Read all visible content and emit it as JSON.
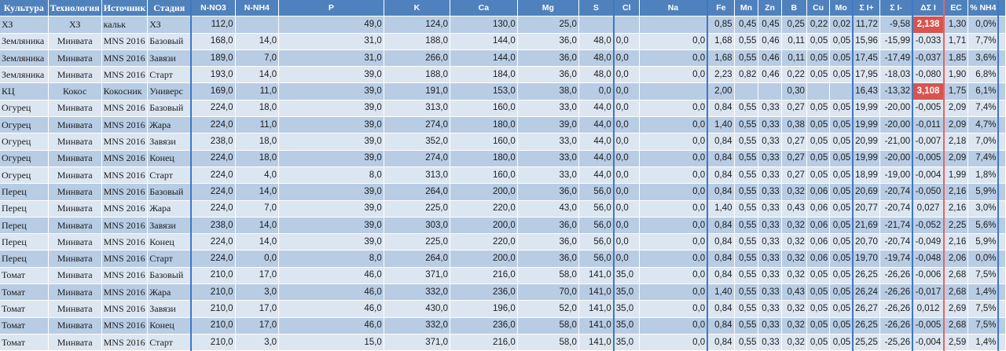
{
  "columns": [
    "Культура",
    "Технология",
    "Источник",
    "Стадия",
    "N-NO3",
    "N-NH4",
    "P",
    "K",
    "Ca",
    "Mg",
    "S",
    "Cl",
    "Na",
    "Fe",
    "Mn",
    "Zn",
    "B",
    "Cu",
    "Mo",
    "Σ I+",
    "Σ I-",
    "ΔΣ I",
    "EC",
    "% NH4",
    ""
  ],
  "rows": [
    [
      "ХЗ",
      "ХЗ",
      "кальк",
      "ХЗ",
      "112,0",
      "",
      "49,0",
      "124,0",
      "130,0",
      "25,0",
      "",
      "",
      "",
      "0,85",
      "0,45",
      "0,45",
      "0,25",
      "0,22",
      "0,02",
      "11,72",
      "-9,58",
      "2,138",
      "1,30",
      "0,0%",
      ""
    ],
    [
      "Земляника",
      "Минвата",
      "MNS 2016",
      "Базовый",
      "168,0",
      "14,0",
      "31,0",
      "188,0",
      "144,0",
      "36,0",
      "48,0",
      "0,0",
      "0,0",
      "1,68",
      "0,55",
      "0,46",
      "0,11",
      "0,05",
      "0,05",
      "15,96",
      "-15,99",
      "-0,033",
      "1,71",
      "7,7%",
      ""
    ],
    [
      "Земляника",
      "Минвата",
      "MNS 2016",
      "Завязи",
      "189,0",
      "7,0",
      "31,0",
      "266,0",
      "144,0",
      "36,0",
      "48,0",
      "0,0",
      "0,0",
      "1,68",
      "0,55",
      "0,46",
      "0,11",
      "0,05",
      "0,05",
      "17,45",
      "-17,49",
      "-0,037",
      "1,85",
      "3,6%",
      ""
    ],
    [
      "Земляника",
      "Минвата",
      "MNS 2016",
      "Старт",
      "193,0",
      "14,0",
      "39,0",
      "188,0",
      "184,0",
      "36,0",
      "48,0",
      "0,0",
      "0,0",
      "2,23",
      "0,82",
      "0,46",
      "0,22",
      "0,05",
      "0,05",
      "17,95",
      "-18,03",
      "-0,080",
      "1,90",
      "6,8%",
      ""
    ],
    [
      "КЦ",
      "Кокос",
      "Кокосник",
      "Универс",
      "169,0",
      "11,0",
      "39,0",
      "191,0",
      "153,0",
      "38,0",
      "0,0",
      "0,0",
      "",
      "2,00",
      "",
      "",
      "0,30",
      "",
      "",
      "16,43",
      "-13,32",
      "3,108",
      "1,75",
      "6,1%",
      ""
    ],
    [
      "Огурец",
      "Минвата",
      "MNS 2016",
      "Базовый",
      "224,0",
      "18,0",
      "39,0",
      "313,0",
      "160,0",
      "33,0",
      "44,0",
      "0,0",
      "0,0",
      "0,84",
      "0,55",
      "0,33",
      "0,27",
      "0,05",
      "0,05",
      "19,99",
      "-20,00",
      "-0,005",
      "2,09",
      "7,4%",
      ""
    ],
    [
      "Огурец",
      "Минвата",
      "MNS 2016",
      "Жара",
      "224,0",
      "11,0",
      "39,0",
      "274,0",
      "180,0",
      "39,0",
      "44,0",
      "0,0",
      "0,0",
      "1,40",
      "0,55",
      "0,33",
      "0,38",
      "0,05",
      "0,05",
      "19,99",
      "-20,00",
      "-0,011",
      "2,09",
      "4,7%",
      ""
    ],
    [
      "Огурец",
      "Минвата",
      "MNS 2016",
      "Завязи",
      "238,0",
      "18,0",
      "39,0",
      "352,0",
      "160,0",
      "33,0",
      "44,0",
      "0,0",
      "0,0",
      "0,84",
      "0,55",
      "0,33",
      "0,27",
      "0,05",
      "0,05",
      "20,99",
      "-21,00",
      "-0,007",
      "2,18",
      "7,0%",
      ""
    ],
    [
      "Огурец",
      "Минвата",
      "MNS 2016",
      "Конец",
      "224,0",
      "18,0",
      "39,0",
      "274,0",
      "180,0",
      "33,0",
      "44,0",
      "0,0",
      "0,0",
      "0,84",
      "0,55",
      "0,33",
      "0,27",
      "0,05",
      "0,05",
      "19,99",
      "-20,00",
      "-0,005",
      "2,09",
      "7,4%",
      ""
    ],
    [
      "Огурец",
      "Минвата",
      "MNS 2016",
      "Старт",
      "224,0",
      "4,0",
      "8,0",
      "313,0",
      "160,0",
      "33,0",
      "44,0",
      "0,0",
      "0,0",
      "0,84",
      "0,55",
      "0,33",
      "0,27",
      "0,05",
      "0,05",
      "18,99",
      "-19,00",
      "-0,004",
      "1,99",
      "1,8%",
      ""
    ],
    [
      "Перец",
      "Минвата",
      "MNS 2016",
      "Базовый",
      "224,0",
      "14,0",
      "39,0",
      "264,0",
      "200,0",
      "36,0",
      "56,0",
      "0,0",
      "0,0",
      "0,84",
      "0,55",
      "0,33",
      "0,32",
      "0,06",
      "0,05",
      "20,69",
      "-20,74",
      "-0,050",
      "2,16",
      "5,9%",
      ""
    ],
    [
      "Перец",
      "Минвата",
      "MNS 2016",
      "Жара",
      "224,0",
      "7,0",
      "39,0",
      "225,0",
      "220,0",
      "43,0",
      "56,0",
      "0,0",
      "0,0",
      "1,40",
      "0,55",
      "0,33",
      "0,43",
      "0,06",
      "0,05",
      "20,77",
      "-20,74",
      "0,027",
      "2,16",
      "3,0%",
      ""
    ],
    [
      "Перец",
      "Минвата",
      "MNS 2016",
      "Завязи",
      "238,0",
      "14,0",
      "39,0",
      "303,0",
      "200,0",
      "36,0",
      "56,0",
      "0,0",
      "0,0",
      "0,84",
      "0,55",
      "0,33",
      "0,32",
      "0,06",
      "0,05",
      "21,69",
      "-21,74",
      "-0,052",
      "2,25",
      "5,6%",
      ""
    ],
    [
      "Перец",
      "Минвата",
      "MNS 2016",
      "Конец",
      "224,0",
      "14,0",
      "39,0",
      "225,0",
      "220,0",
      "36,0",
      "56,0",
      "0,0",
      "0,0",
      "0,84",
      "0,55",
      "0,33",
      "0,32",
      "0,06",
      "0,05",
      "20,70",
      "-20,74",
      "-0,049",
      "2,16",
      "5,9%",
      ""
    ],
    [
      "Перец",
      "Минвата",
      "MNS 2016",
      "Старт",
      "224,0",
      "0,0",
      "8,0",
      "264,0",
      "200,0",
      "36,0",
      "56,0",
      "0,0",
      "0,0",
      "0,84",
      "0,55",
      "0,33",
      "0,32",
      "0,06",
      "0,05",
      "19,70",
      "-19,74",
      "-0,048",
      "2,06",
      "0,0%",
      ""
    ],
    [
      "Томат",
      "Минвата",
      "MNS 2016",
      "Базовый",
      "210,0",
      "17,0",
      "46,0",
      "371,0",
      "216,0",
      "58,0",
      "141,0",
      "35,0",
      "0,0",
      "0,84",
      "0,55",
      "0,33",
      "0,32",
      "0,05",
      "0,05",
      "26,25",
      "-26,26",
      "-0,006",
      "2,68",
      "7,5%",
      ""
    ],
    [
      "Томат",
      "Минвата",
      "MNS 2016",
      "Жара",
      "210,0",
      "3,0",
      "46,0",
      "332,0",
      "236,0",
      "70,0",
      "141,0",
      "35,0",
      "0,0",
      "1,40",
      "0,55",
      "0,33",
      "0,43",
      "0,05",
      "0,05",
      "26,24",
      "-26,26",
      "-0,017",
      "2,68",
      "1,4%",
      ""
    ],
    [
      "Томат",
      "Минвата",
      "MNS 2016",
      "Завязи",
      "210,0",
      "17,0",
      "46,0",
      "430,0",
      "196,0",
      "52,0",
      "141,0",
      "35,0",
      "0,0",
      "0,84",
      "0,55",
      "0,33",
      "0,32",
      "0,05",
      "0,05",
      "26,27",
      "-26,26",
      "0,012",
      "2,69",
      "7,5%",
      ""
    ],
    [
      "Томат",
      "Минвата",
      "MNS 2016",
      "Конец",
      "210,0",
      "17,0",
      "46,0",
      "332,0",
      "236,0",
      "58,0",
      "141,0",
      "35,0",
      "0,0",
      "0,84",
      "0,55",
      "0,33",
      "0,32",
      "0,05",
      "0,05",
      "26,25",
      "-26,26",
      "-0,005",
      "2,68",
      "7,5%",
      ""
    ],
    [
      "Томат",
      "Минвата",
      "MNS 2016",
      "Старт",
      "210,0",
      "3,0",
      "15,0",
      "371,0",
      "216,0",
      "58,0",
      "141,0",
      "35,0",
      "0,0",
      "0,84",
      "0,55",
      "0,33",
      "0,32",
      "0,05",
      "0,05",
      "25,25",
      "-25,26",
      "-0,004",
      "2,59",
      "1,4%",
      ""
    ]
  ],
  "highlight_cells": [
    [
      0,
      21
    ],
    [
      4,
      21
    ]
  ],
  "colors": {
    "header_bg": "#4f81bd",
    "row_odd": "#b8cce4",
    "row_even": "#dce6f1",
    "highlight": "#d9534f",
    "group_divider": "#3e78c2",
    "delta_divider": "#e06666"
  }
}
